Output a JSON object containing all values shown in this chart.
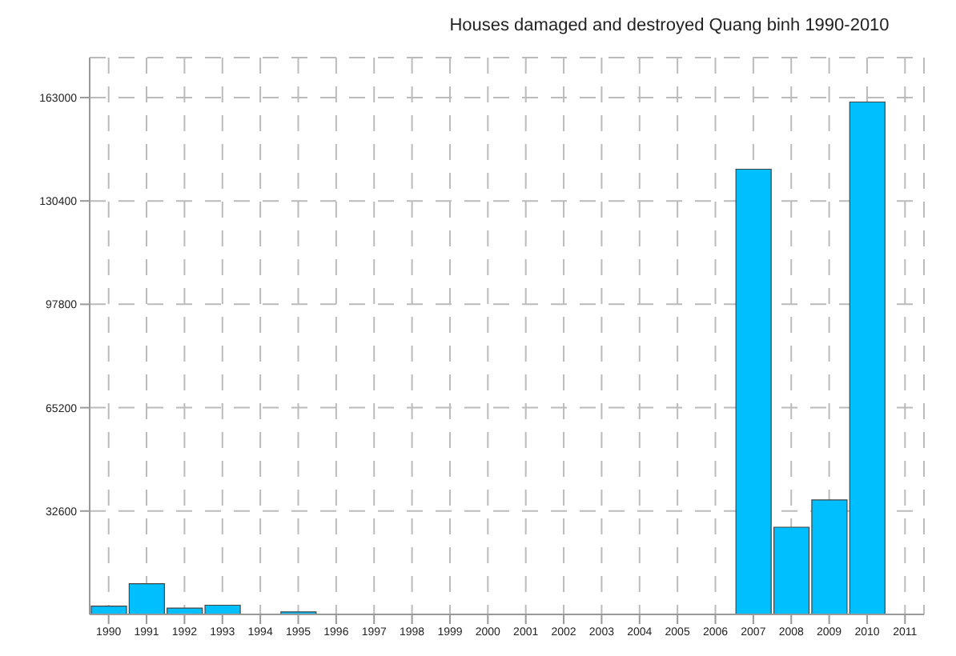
{
  "chart_data": {
    "type": "bar",
    "title": "Houses damaged and destroyed Quang binh 1990-2010",
    "categories": [
      "1990",
      "1991",
      "1992",
      "1993",
      "1994",
      "1995",
      "1996",
      "1997",
      "1998",
      "1999",
      "2000",
      "2001",
      "2002",
      "2003",
      "2004",
      "2005",
      "2006",
      "2007",
      "2008",
      "2009",
      "2010",
      "2011"
    ],
    "values": [
      2600,
      9700,
      2000,
      2900,
      0,
      800,
      0,
      0,
      0,
      0,
      0,
      0,
      0,
      0,
      0,
      0,
      0,
      140400,
      27500,
      36100,
      161600,
      0
    ],
    "color": "#00bfff",
    "ylim": [
      0,
      175600
    ],
    "yticks": [
      32600,
      65200,
      97800,
      130400,
      163000
    ],
    "grid": true
  }
}
